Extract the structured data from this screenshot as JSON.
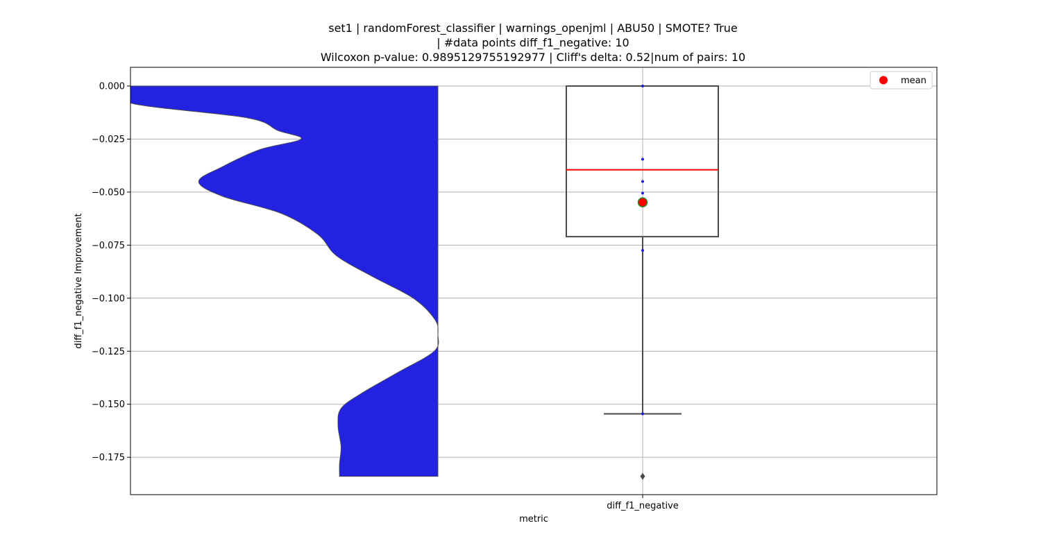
{
  "chart_data": {
    "type": "violin+box",
    "title_lines": [
      "set1 | randomForest_classifier | warnings_openjml | ABU50 | SMOTE? True",
      "| #data points diff_f1_negative: 10",
      "Wilcoxon p-value: 0.9895129755192977 | Cliff's delta: 0.52|num of pairs: 10"
    ],
    "xlabel": "metric",
    "ylabel": "diff_f1_negative Improvement",
    "categories": [
      "diff_f1_negative"
    ],
    "ylim": [
      -0.1925,
      0.0093
    ],
    "yticks": [
      0.0,
      -0.025,
      -0.05,
      -0.075,
      -0.1,
      -0.125,
      -0.15,
      -0.175
    ],
    "ytick_labels": [
      "0.000",
      "−0.025",
      "−0.050",
      "−0.075",
      "−0.100",
      "−0.125",
      "−0.150",
      "−0.175"
    ],
    "grid": true,
    "legend": {
      "placement": "top-right",
      "entries": [
        {
          "label": "mean",
          "color": "#ff0000"
        }
      ]
    },
    "violin": {
      "color": "#2222e0",
      "y_min": -0.184,
      "y_max": 0.0,
      "density_profile": [
        [
          0.0,
          1.0
        ],
        [
          -0.008,
          1.0
        ],
        [
          -0.015,
          0.62
        ],
        [
          -0.021,
          0.52
        ],
        [
          -0.025,
          0.445
        ],
        [
          -0.03,
          0.58
        ],
        [
          -0.038,
          0.7
        ],
        [
          -0.045,
          0.778
        ],
        [
          -0.052,
          0.7
        ],
        [
          -0.06,
          0.51
        ],
        [
          -0.07,
          0.39
        ],
        [
          -0.08,
          0.33
        ],
        [
          -0.09,
          0.21
        ],
        [
          -0.1,
          0.08
        ],
        [
          -0.11,
          0.01
        ],
        [
          -0.117,
          0.0
        ],
        [
          -0.125,
          0.012
        ],
        [
          -0.135,
          0.13
        ],
        [
          -0.145,
          0.25
        ],
        [
          -0.152,
          0.315
        ],
        [
          -0.16,
          0.325
        ],
        [
          -0.17,
          0.315
        ],
        [
          -0.178,
          0.32
        ],
        [
          -0.184,
          0.32
        ]
      ]
    },
    "boxplot": {
      "q1": -0.071,
      "median": -0.0395,
      "q3": 0.0,
      "whisker_low": -0.1545,
      "whisker_high": 0.0,
      "mean": -0.0548,
      "outliers": [
        -0.184
      ],
      "median_color": "#ff0000",
      "mean_color": "#ff0000",
      "mean_edge_color": "#2a8a2a"
    },
    "points": [
      0.0,
      -0.0345,
      -0.045,
      -0.0505,
      -0.0775,
      -0.1545
    ],
    "point_color": "#1f1fe0"
  }
}
